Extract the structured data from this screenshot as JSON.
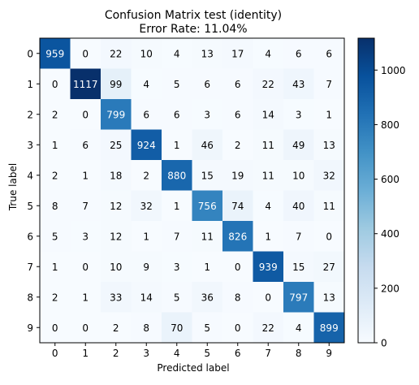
{
  "chart_data": {
    "type": "heatmap",
    "title_line1": "Confusion Matrix  test (identity)",
    "title_line2": "Error Rate: 11.04%",
    "xlabel": "Predicted label",
    "ylabel": "True label",
    "x_categories": [
      "0",
      "1",
      "2",
      "3",
      "4",
      "5",
      "6",
      "7",
      "8",
      "9"
    ],
    "y_categories": [
      "0",
      "1",
      "2",
      "3",
      "4",
      "5",
      "6",
      "7",
      "8",
      "9"
    ],
    "matrix": [
      [
        959,
        0,
        22,
        10,
        4,
        13,
        17,
        4,
        6,
        6
      ],
      [
        0,
        1117,
        99,
        4,
        5,
        6,
        6,
        22,
        43,
        7
      ],
      [
        2,
        0,
        799,
        6,
        6,
        3,
        6,
        14,
        3,
        1
      ],
      [
        1,
        6,
        25,
        924,
        1,
        46,
        2,
        11,
        49,
        13
      ],
      [
        2,
        1,
        18,
        2,
        880,
        15,
        19,
        11,
        10,
        32
      ],
      [
        8,
        7,
        12,
        32,
        1,
        756,
        74,
        4,
        40,
        11
      ],
      [
        5,
        3,
        12,
        1,
        7,
        11,
        826,
        1,
        7,
        0
      ],
      [
        1,
        0,
        10,
        9,
        3,
        1,
        0,
        939,
        15,
        27
      ],
      [
        2,
        1,
        33,
        14,
        5,
        36,
        8,
        0,
        797,
        13
      ],
      [
        0,
        0,
        2,
        8,
        70,
        5,
        0,
        22,
        4,
        899
      ]
    ],
    "colormap": "Blues",
    "vmin": 0,
    "vmax": 1117,
    "colorbar_ticks": [
      0,
      200,
      400,
      600,
      800,
      1000
    ],
    "colorbar_tick_labels": [
      "0",
      "200",
      "400",
      "600",
      "800",
      "1000"
    ],
    "annotation_threshold": 558.5,
    "colors": {
      "annotation_dark": "#000000",
      "annotation_light": "#ffffff",
      "axis": "#000000",
      "background": "#ffffff"
    }
  }
}
